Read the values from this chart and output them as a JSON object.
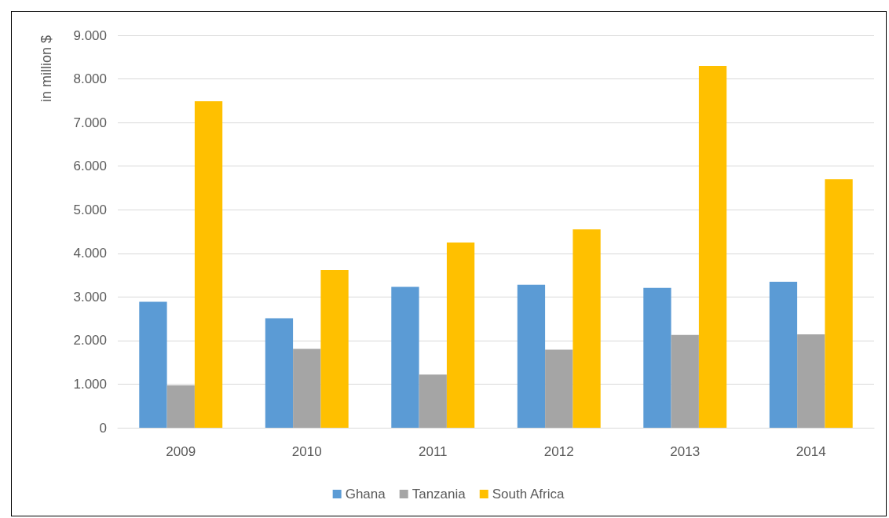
{
  "chart_data": {
    "type": "bar",
    "ylabel": "in million $",
    "categories": [
      "2009",
      "2010",
      "2011",
      "2012",
      "2013",
      "2014"
    ],
    "series": [
      {
        "name": "Ghana",
        "color": "#5b9bd5",
        "values": [
          2890,
          2510,
          3230,
          3280,
          3210,
          3350
        ]
      },
      {
        "name": "Tanzania",
        "color": "#a5a5a5",
        "values": [
          970,
          1810,
          1220,
          1790,
          2130,
          2140
        ]
      },
      {
        "name": "South Africa",
        "color": "#ffc000",
        "values": [
          7490,
          3620,
          4250,
          4550,
          8300,
          5700
        ]
      }
    ],
    "ylim": [
      0,
      9000
    ],
    "yticks": [
      0,
      {
        "value": 1000,
        "label": "1.000"
      },
      {
        "value": 2000,
        "label": "2.000"
      },
      {
        "value": 3000,
        "label": "3.000"
      },
      {
        "value": 4000,
        "label": "4.000"
      },
      {
        "value": 5000,
        "label": "5.000"
      },
      {
        "value": 6000,
        "label": "6.000"
      },
      {
        "value": 7000,
        "label": "7.000"
      },
      {
        "value": 8000,
        "label": "8.000"
      },
      {
        "value": 9000,
        "label": "9.000"
      }
    ],
    "grid": "y",
    "legend": "bottom"
  }
}
